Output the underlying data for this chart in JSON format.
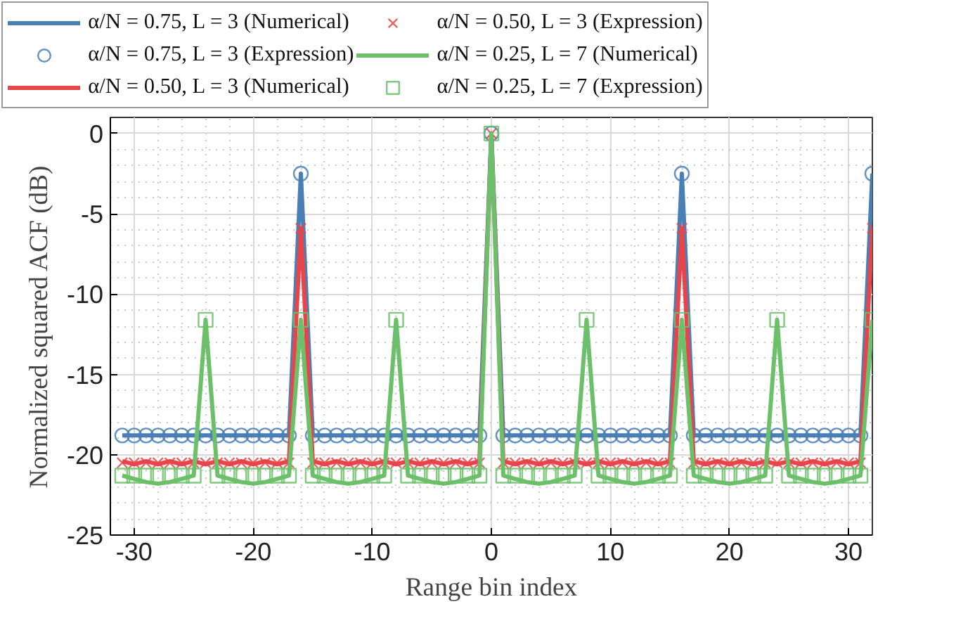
{
  "chart_data": {
    "type": "line",
    "xlabel": "Range bin index",
    "ylabel": "Normalized squared ACF (dB)",
    "x": [
      -31,
      -30,
      -29,
      -28,
      -27,
      -26,
      -25,
      -24,
      -23,
      -22,
      -21,
      -20,
      -19,
      -18,
      -17,
      -16,
      -15,
      -14,
      -13,
      -12,
      -11,
      -10,
      -9,
      -8,
      -7,
      -6,
      -5,
      -4,
      -3,
      -2,
      -1,
      0,
      1,
      2,
      3,
      4,
      5,
      6,
      7,
      8,
      9,
      10,
      11,
      12,
      13,
      14,
      15,
      16,
      17,
      18,
      19,
      20,
      21,
      22,
      23,
      24,
      25,
      26,
      27,
      28,
      29,
      30,
      31,
      32
    ],
    "xlim": [
      -32,
      32
    ],
    "xticks": [
      -30,
      -20,
      -10,
      0,
      10,
      20,
      30
    ],
    "ylim": [
      -25,
      1
    ],
    "yticks": [
      -25,
      -20,
      -15,
      -10,
      -5,
      0
    ],
    "grid": true,
    "legend": "top",
    "series": [
      {
        "name": "α/N = 0.75, L = 3 (Numerical)",
        "marker": "none",
        "color": "#4a7fb5",
        "values": [
          -18.8,
          -18.8,
          -18.8,
          -18.8,
          -18.8,
          -18.8,
          -18.8,
          -18.8,
          -18.8,
          -18.8,
          -18.8,
          -18.8,
          -18.8,
          -18.8,
          -18.8,
          -2.5,
          -18.8,
          -18.8,
          -18.8,
          -18.8,
          -18.8,
          -18.8,
          -18.8,
          -18.8,
          -18.8,
          -18.8,
          -18.8,
          -18.8,
          -18.8,
          -18.8,
          -18.8,
          0,
          -18.8,
          -18.8,
          -18.8,
          -18.8,
          -18.8,
          -18.8,
          -18.8,
          -18.8,
          -18.8,
          -18.8,
          -18.8,
          -18.8,
          -18.8,
          -18.8,
          -18.8,
          -2.5,
          -18.8,
          -18.8,
          -18.8,
          -18.8,
          -18.8,
          -18.8,
          -18.8,
          -18.8,
          -18.8,
          -18.8,
          -18.8,
          -18.8,
          -18.8,
          -18.8,
          -18.8,
          -2.5
        ]
      },
      {
        "name": "α/N = 0.75, L = 3 (Expression)",
        "type": "scatter",
        "marker": "circle",
        "color": "#4a7fb5",
        "values": [
          -18.8,
          -18.8,
          -18.8,
          -18.8,
          -18.8,
          -18.8,
          -18.8,
          -18.8,
          -18.8,
          -18.8,
          -18.8,
          -18.8,
          -18.8,
          -18.8,
          -18.8,
          -2.5,
          -18.8,
          -18.8,
          -18.8,
          -18.8,
          -18.8,
          -18.8,
          -18.8,
          -18.8,
          -18.8,
          -18.8,
          -18.8,
          -18.8,
          -18.8,
          -18.8,
          -18.8,
          0,
          -18.8,
          -18.8,
          -18.8,
          -18.8,
          -18.8,
          -18.8,
          -18.8,
          -18.8,
          -18.8,
          -18.8,
          -18.8,
          -18.8,
          -18.8,
          -18.8,
          -18.8,
          -2.5,
          -18.8,
          -18.8,
          -18.8,
          -18.8,
          -18.8,
          -18.8,
          -18.8,
          -18.8,
          -18.8,
          -18.8,
          -18.8,
          -18.8,
          -18.8,
          -18.8,
          -18.8,
          -2.5
        ]
      },
      {
        "name": "α/N = 0.50, L = 3 (Numerical)",
        "marker": "none",
        "color": "#e8454a",
        "values": [
          -20.4,
          -20.6,
          -20.4,
          -20.6,
          -20.4,
          -20.6,
          -20.4,
          -20.6,
          -20.4,
          -20.6,
          -20.4,
          -20.6,
          -20.4,
          -20.6,
          -20.4,
          -5.9,
          -20.4,
          -20.6,
          -20.4,
          -20.6,
          -20.4,
          -20.6,
          -20.4,
          -20.6,
          -20.4,
          -20.6,
          -20.4,
          -20.6,
          -20.4,
          -20.6,
          -20.4,
          0,
          -20.4,
          -20.6,
          -20.4,
          -20.6,
          -20.4,
          -20.6,
          -20.4,
          -20.6,
          -20.4,
          -20.6,
          -20.4,
          -20.6,
          -20.4,
          -20.6,
          -20.4,
          -5.9,
          -20.4,
          -20.6,
          -20.4,
          -20.6,
          -20.4,
          -20.6,
          -20.4,
          -20.6,
          -20.4,
          -20.6,
          -20.4,
          -20.6,
          -20.4,
          -20.6,
          -20.4,
          -5.9
        ]
      },
      {
        "name": "α/N = 0.50, L = 3 (Expression)",
        "type": "scatter",
        "marker": "cross",
        "color": "#e8454a",
        "values": [
          -20.5,
          -20.5,
          -20.5,
          -20.5,
          -20.5,
          -20.5,
          -20.5,
          -20.5,
          -20.5,
          -20.5,
          -20.5,
          -20.5,
          -20.5,
          -20.5,
          -20.5,
          -5.9,
          -20.5,
          -20.5,
          -20.5,
          -20.5,
          -20.5,
          -20.5,
          -20.5,
          -20.5,
          -20.5,
          -20.5,
          -20.5,
          -20.5,
          -20.5,
          -20.5,
          -20.5,
          0,
          -20.5,
          -20.5,
          -20.5,
          -20.5,
          -20.5,
          -20.5,
          -20.5,
          -20.5,
          -20.5,
          -20.5,
          -20.5,
          -20.5,
          -20.5,
          -20.5,
          -20.5,
          -5.9,
          -20.5,
          -20.5,
          -20.5,
          -20.5,
          -20.5,
          -20.5,
          -20.5,
          -20.5,
          -20.5,
          -20.5,
          -20.5,
          -20.5,
          -20.5,
          -20.5,
          -20.5,
          -5.9
        ]
      },
      {
        "name": "α/N = 0.25, L = 7 (Numerical)",
        "marker": "none",
        "color": "#6cc06a",
        "values": [
          -21.3,
          -21.5,
          -21.7,
          -21.8,
          -21.7,
          -21.5,
          -21.3,
          -11.6,
          -21.3,
          -21.5,
          -21.7,
          -21.8,
          -21.7,
          -21.5,
          -21.3,
          -11.6,
          -21.3,
          -21.5,
          -21.7,
          -21.8,
          -21.7,
          -21.5,
          -21.3,
          -11.6,
          -21.3,
          -21.5,
          -21.7,
          -21.8,
          -21.7,
          -21.5,
          -21.3,
          0,
          -21.3,
          -21.5,
          -21.7,
          -21.8,
          -21.7,
          -21.5,
          -21.3,
          -11.6,
          -21.3,
          -21.5,
          -21.7,
          -21.8,
          -21.7,
          -21.5,
          -21.3,
          -11.6,
          -21.3,
          -21.5,
          -21.7,
          -21.8,
          -21.7,
          -21.5,
          -21.3,
          -11.6,
          -21.3,
          -21.5,
          -21.7,
          -21.8,
          -21.7,
          -21.5,
          -21.3,
          -11.6
        ]
      },
      {
        "name": "α/N = 0.25, L = 7 (Expression)",
        "type": "scatter",
        "marker": "square",
        "color": "#6cc06a",
        "values": [
          -21.3,
          -21.3,
          -21.3,
          -21.3,
          -21.3,
          -21.3,
          -21.3,
          -11.6,
          -21.3,
          -21.3,
          -21.3,
          -21.3,
          -21.3,
          -21.3,
          -21.3,
          -11.6,
          -21.3,
          -21.3,
          -21.3,
          -21.3,
          -21.3,
          -21.3,
          -21.3,
          -11.6,
          -21.3,
          -21.3,
          -21.3,
          -21.3,
          -21.3,
          -21.3,
          -21.3,
          0,
          -21.3,
          -21.3,
          -21.3,
          -21.3,
          -21.3,
          -21.3,
          -21.3,
          -11.6,
          -21.3,
          -21.3,
          -21.3,
          -21.3,
          -21.3,
          -21.3,
          -21.3,
          -11.6,
          -21.3,
          -21.3,
          -21.3,
          -21.3,
          -21.3,
          -21.3,
          -21.3,
          -11.6,
          -21.3,
          -21.3,
          -21.3,
          -21.3,
          -21.3,
          -21.3,
          -21.3,
          -11.6
        ]
      }
    ]
  }
}
